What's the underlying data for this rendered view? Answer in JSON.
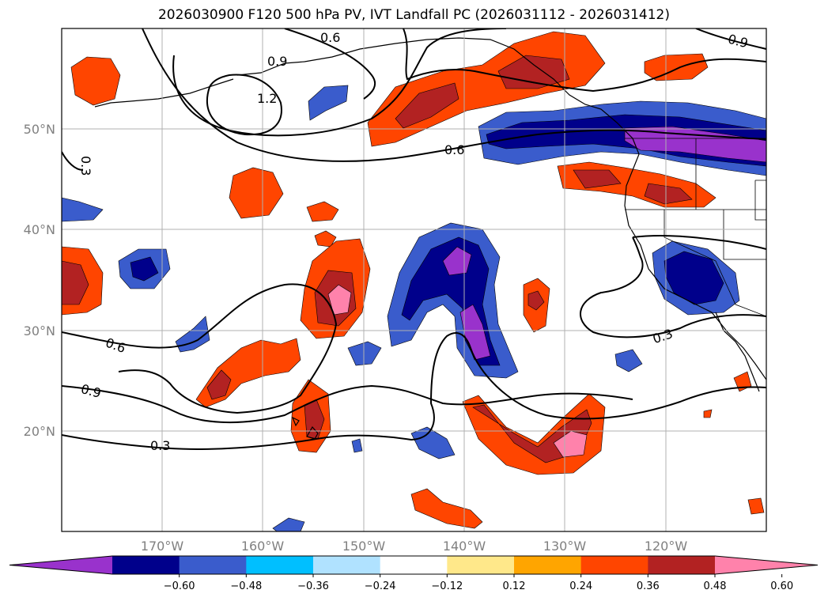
{
  "title": "2026030900 F120 500 hPa PV, IVT Landfall PC (2026031112 - 2026031412)",
  "map": {
    "lat_labels": [
      "50°N",
      "40°N",
      "30°N",
      "20°N"
    ],
    "lon_labels": [
      "170°W",
      "160°W",
      "150°W",
      "140°W",
      "130°W",
      "120°W"
    ],
    "contour_labels": [
      "0.6",
      "0.9",
      "1.2",
      "0.6",
      "0.3",
      "0.6",
      "0.9",
      "0.3",
      "0.3",
      "0.9"
    ]
  },
  "colorbar": {
    "colors": [
      "#9932cc",
      "#00008b",
      "#3a5ccc",
      "#00bfff",
      "#b0e2ff",
      "#ffffff",
      "#ffe88a",
      "#ffa500",
      "#ff4500",
      "#b22222",
      "#ff82ab"
    ],
    "tick_labels": [
      "−0.60",
      "−0.48",
      "−0.36",
      "−0.24",
      "−0.12",
      "0.12",
      "0.24",
      "0.36",
      "0.48",
      "0.60"
    ]
  }
}
